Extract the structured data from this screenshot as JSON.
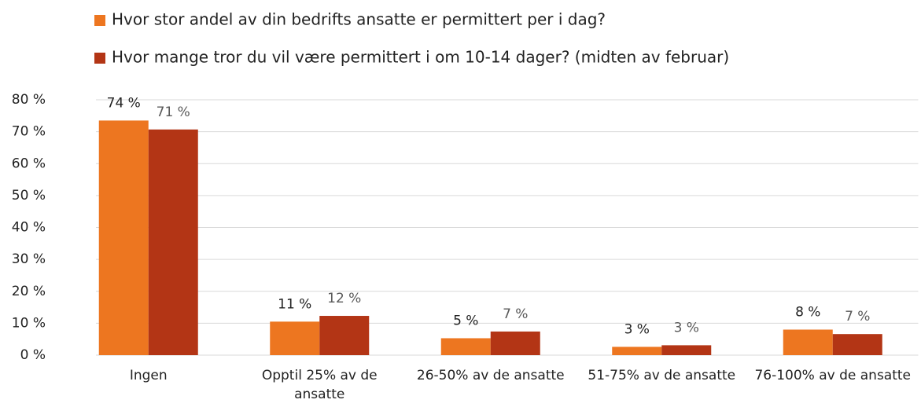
{
  "chart_data": {
    "type": "bar",
    "categories": [
      "Ingen",
      "Opptil 25%  av de ansatte",
      "26-50% av de ansatte",
      "51-75% av de ansatte",
      "76-100% av de ansatte"
    ],
    "series": [
      {
        "name": "Hvor stor andel av din bedrifts ansatte er permittert per i dag?",
        "color": "#ED7620",
        "values": [
          73.5,
          10.5,
          5.3,
          2.6,
          8.0
        ],
        "value_labels": [
          "74 %",
          "11 %",
          "5 %",
          "3 %",
          "8 %"
        ]
      },
      {
        "name": "Hvor mange tror du vil være permittert i om 10-14 dager? (midten av februar)",
        "color": "#B33515",
        "values": [
          70.7,
          12.3,
          7.4,
          3.1,
          6.6
        ],
        "value_labels": [
          "71 %",
          "12 %",
          "7 %",
          "3 %",
          "7 %"
        ]
      }
    ],
    "ylim": [
      0,
      80
    ],
    "yticks": [
      {
        "value": 0,
        "label": "0 %"
      },
      {
        "value": 10,
        "label": "10 %"
      },
      {
        "value": 20,
        "label": "20 %"
      },
      {
        "value": 30,
        "label": "30 %"
      },
      {
        "value": 40,
        "label": "40 %"
      },
      {
        "value": 50,
        "label": "50 %"
      },
      {
        "value": 60,
        "label": "60 %"
      },
      {
        "value": 70,
        "label": "70 %"
      },
      {
        "value": 80,
        "label": "80 %"
      }
    ],
    "grid": true,
    "legend": "top"
  }
}
